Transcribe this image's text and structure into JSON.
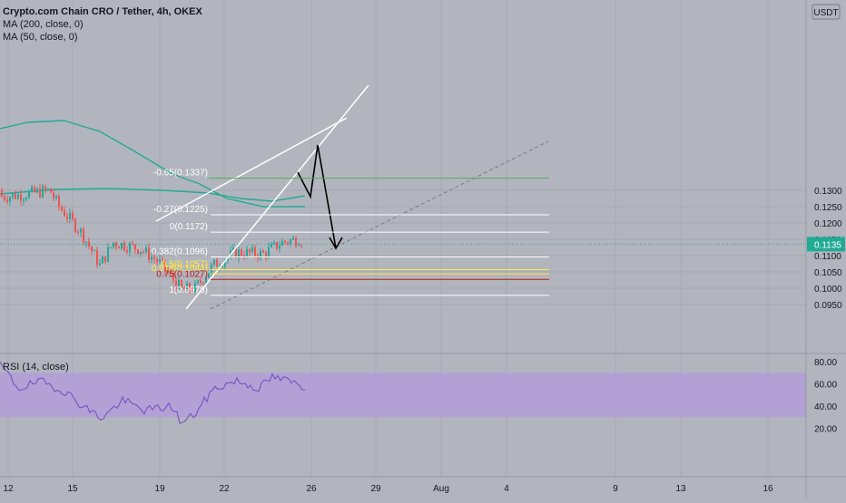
{
  "header": {
    "symbol_line": "Crypto.com Chain CRO / Tether, 4h, OKEX",
    "ma200_label": "MA (200, close, 0)",
    "ma50_label": "MA (50, close, 0)",
    "rsi_label": "RSI (14, close)",
    "currency_badge": "USDT"
  },
  "colors": {
    "background": "#b2b5be",
    "up_candle": "#26a69a",
    "down_candle": "#ef5350",
    "ma_line": "#22ab94",
    "rsi_line": "#7e57c2",
    "rsi_band": "#b39ddb",
    "price_badge": "#22ab94",
    "fib_line": "#ffffff",
    "fib_yellow": "#ffeb3b",
    "fib_red": "#b71c1c",
    "top_green": "#4caf50"
  },
  "chart_data": {
    "type": "candlestick",
    "price_axis": {
      "ticks": [
        "0.1300",
        "0.1250",
        "0.1200",
        "0.1150",
        "0.1100",
        "0.1050",
        "0.1000",
        "0.0950"
      ],
      "current_price": "0.1135"
    },
    "rsi_axis": {
      "ticks": [
        "80.00",
        "60.00",
        "40.00",
        "20.00"
      ],
      "band": [
        30,
        70
      ]
    },
    "x_ticks": [
      "12",
      "15",
      "19",
      "22",
      "26",
      "29",
      "Aug",
      "4",
      "9",
      "13",
      "16"
    ],
    "fib_levels": [
      {
        "label": "-0.27(0.1225)",
        "value": 0.1225
      },
      {
        "label": "0(0.1172)",
        "value": 0.1172
      },
      {
        "label": "0.382(0.1096)",
        "value": 0.1096
      },
      {
        "label": "0.5(0.1057)",
        "value": 0.1057
      },
      {
        "label": "0.618(0.1044)",
        "value": 0.1044
      },
      {
        "label": "0.75(0.1027)",
        "value": 0.1027
      },
      {
        "label": "1(0.0978)",
        "value": 0.0978
      },
      {
        "label": "-0.65(0.1337)",
        "value": 0.1337
      }
    ]
  }
}
